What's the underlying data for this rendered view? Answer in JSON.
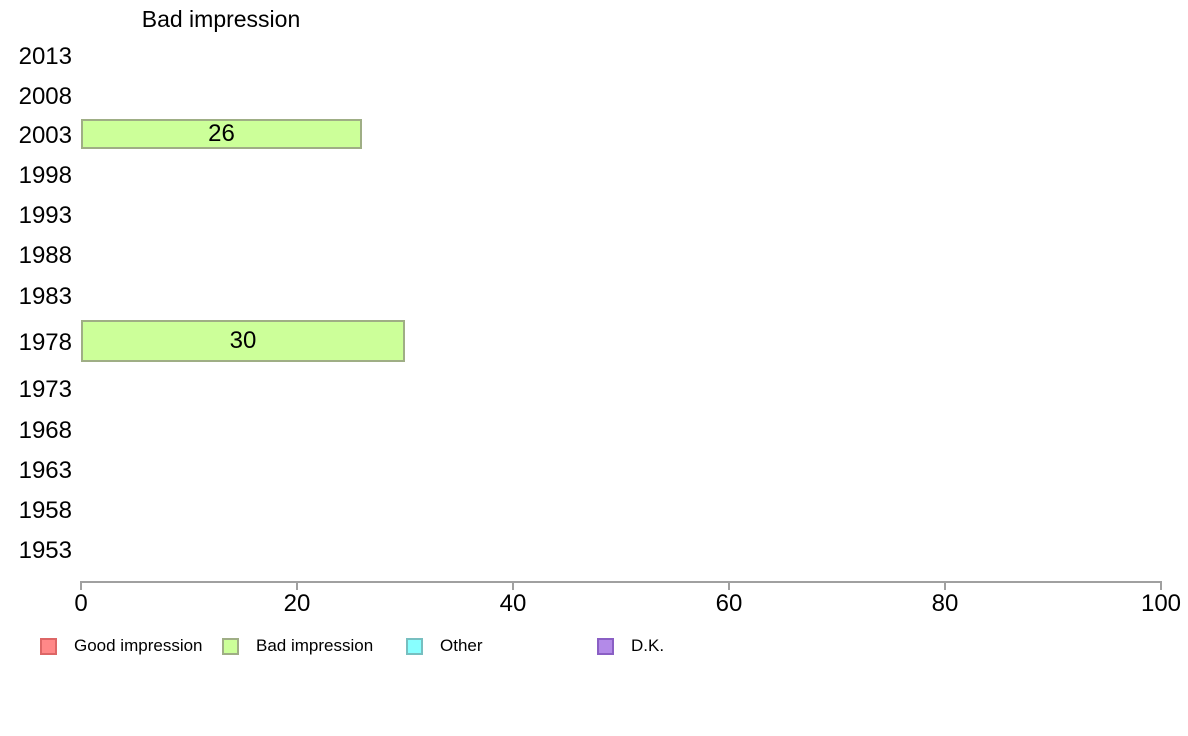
{
  "chart_data": {
    "type": "bar",
    "orientation": "horizontal",
    "title": "Bad impression",
    "categories": [
      "2013",
      "2008",
      "2003",
      "1998",
      "1993",
      "1988",
      "1983",
      "1978",
      "1973",
      "1968",
      "1963",
      "1958",
      "1953"
    ],
    "series": [
      {
        "name": "Good impression",
        "fill_color": "#ff8888",
        "border_color": "#dd6666",
        "values": [
          null,
          null,
          null,
          null,
          null,
          null,
          null,
          null,
          null,
          null,
          null,
          null,
          null
        ]
      },
      {
        "name": "Bad impression",
        "fill_color": "#ccff99",
        "border_color": "#9fae85",
        "values": [
          null,
          null,
          26,
          null,
          null,
          null,
          null,
          30,
          null,
          null,
          null,
          null,
          null
        ]
      },
      {
        "name": "Other",
        "fill_color": "#88ffff",
        "border_color": "#77bfc0",
        "values": [
          null,
          null,
          null,
          null,
          null,
          null,
          null,
          null,
          null,
          null,
          null,
          null,
          null
        ]
      },
      {
        "name": "D.K.",
        "fill_color": "#b38ae8",
        "border_color": "#8a5fc4",
        "values": [
          null,
          null,
          null,
          null,
          null,
          null,
          null,
          null,
          null,
          null,
          null,
          null,
          null
        ]
      }
    ],
    "xlabel": "",
    "ylabel": "",
    "xlim": [
      0,
      100
    ],
    "x_ticks": [
      0,
      20,
      40,
      60,
      80,
      100
    ],
    "grid": false,
    "legend_position": "bottom",
    "axis_color": "#a0a0a0",
    "text_color": "#000000"
  }
}
